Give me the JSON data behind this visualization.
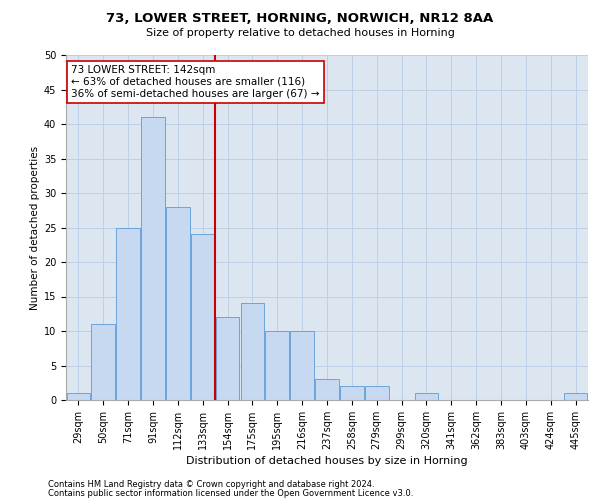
{
  "title1": "73, LOWER STREET, HORNING, NORWICH, NR12 8AA",
  "title2": "Size of property relative to detached houses in Horning",
  "xlabel": "Distribution of detached houses by size in Horning",
  "ylabel": "Number of detached properties",
  "categories": [
    "29sqm",
    "50sqm",
    "71sqm",
    "91sqm",
    "112sqm",
    "133sqm",
    "154sqm",
    "175sqm",
    "195sqm",
    "216sqm",
    "237sqm",
    "258sqm",
    "279sqm",
    "299sqm",
    "320sqm",
    "341sqm",
    "362sqm",
    "383sqm",
    "403sqm",
    "424sqm",
    "445sqm"
  ],
  "values": [
    1,
    11,
    25,
    41,
    28,
    24,
    12,
    14,
    10,
    10,
    3,
    2,
    2,
    0,
    1,
    0,
    0,
    0,
    0,
    0,
    1
  ],
  "bar_color": "#c6d9f0",
  "bar_edge_color": "#5b9bd5",
  "vline_color": "#cc0000",
  "vline_x": 5.5,
  "annotation_line1": "73 LOWER STREET: 142sqm",
  "annotation_line2": "← 63% of detached houses are smaller (116)",
  "annotation_line3": "36% of semi-detached houses are larger (67) →",
  "annotation_box_color": "#ffffff",
  "annotation_box_edge": "#cc0000",
  "ylim": [
    0,
    50
  ],
  "yticks": [
    0,
    5,
    10,
    15,
    20,
    25,
    30,
    35,
    40,
    45,
    50
  ],
  "grid_color": "#b8cce4",
  "background_color": "#dce6f1",
  "footer1": "Contains HM Land Registry data © Crown copyright and database right 2024.",
  "footer2": "Contains public sector information licensed under the Open Government Licence v3.0.",
  "title1_fontsize": 9.5,
  "title2_fontsize": 8,
  "xlabel_fontsize": 8,
  "ylabel_fontsize": 7.5,
  "tick_fontsize": 7,
  "annotation_fontsize": 7.5,
  "footer_fontsize": 6
}
